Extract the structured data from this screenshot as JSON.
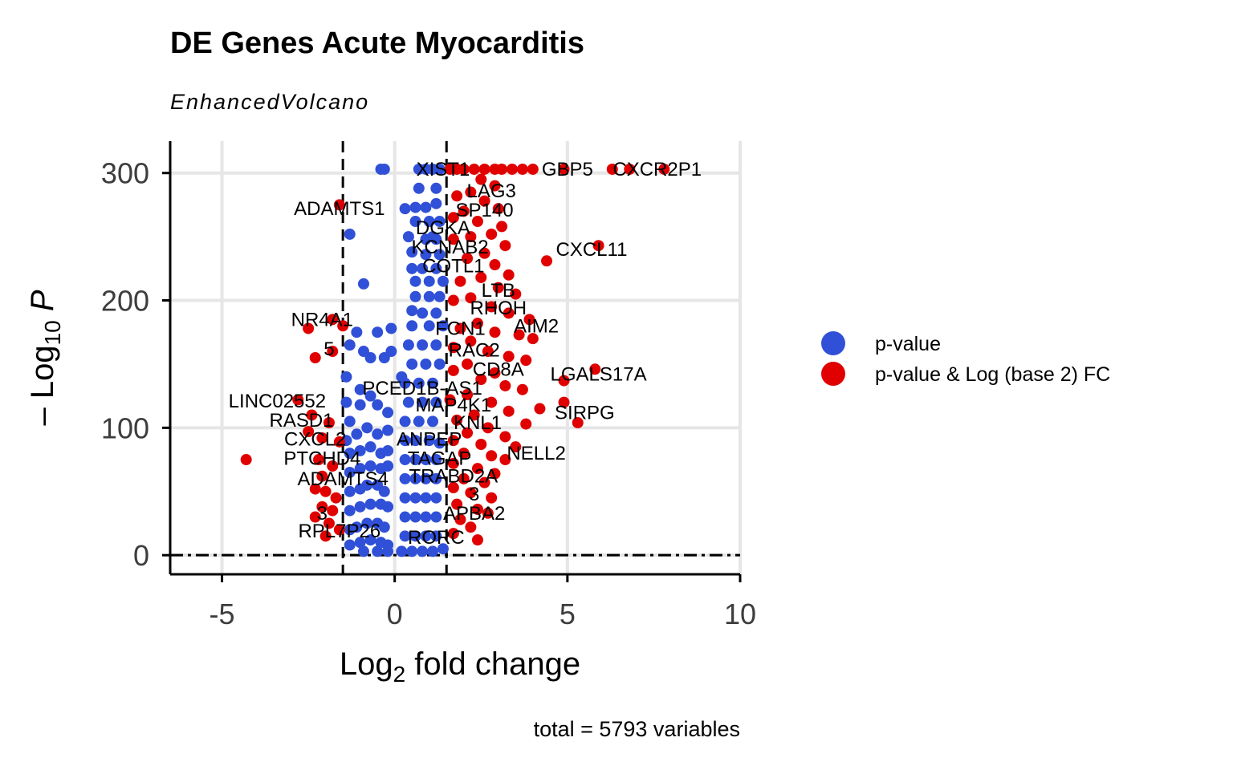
{
  "chart_data": {
    "type": "scatter",
    "title": "DE Genes Acute Myocarditis",
    "subtitle": "EnhancedVolcano",
    "xlabel_main": "Log",
    "xlabel_sub": "2",
    "xlabel_rest": " fold change",
    "ylabel_prefix": "– Log",
    "ylabel_sub": "10",
    "ylabel_var": "P",
    "caption": "total = 5793 variables",
    "xlim": [
      -6.5,
      10
    ],
    "ylim": [
      -15,
      325
    ],
    "x_ticks": [
      -5,
      0,
      5,
      10
    ],
    "x_tick_labels": [
      "-5",
      "0",
      "5",
      "10"
    ],
    "y_ticks": [
      0,
      100,
      200,
      300
    ],
    "y_tick_labels": [
      "0",
      "100",
      "200",
      "300"
    ],
    "fc_cutoff": 1.5,
    "p_cutoff": 0,
    "grid": true,
    "legend_position": "right",
    "colors": {
      "pvalue": "#3050d8",
      "both": "#e00000"
    },
    "legend": [
      {
        "key": "pvalue",
        "label": "p-value"
      },
      {
        "key": "both",
        "label": "p-value & Log (base 2) FC"
      }
    ],
    "series": [
      {
        "key": "pvalue",
        "points": [
          [
            -0.4,
            303
          ],
          [
            -0.3,
            303
          ],
          [
            0.7,
            303
          ],
          [
            0.9,
            303
          ],
          [
            1.1,
            303
          ],
          [
            1.3,
            303
          ],
          [
            0.7,
            288
          ],
          [
            1.2,
            288
          ],
          [
            0.6,
            273
          ],
          [
            0.9,
            273
          ],
          [
            1.2,
            276
          ],
          [
            0.3,
            272
          ],
          [
            0.6,
            262
          ],
          [
            1.0,
            262
          ],
          [
            1.3,
            262
          ],
          [
            0.9,
            248
          ],
          [
            1.2,
            248
          ],
          [
            0.5,
            238
          ],
          [
            0.9,
            236
          ],
          [
            1.3,
            236
          ],
          [
            -1.3,
            252
          ],
          [
            0.5,
            225
          ],
          [
            0.8,
            225
          ],
          [
            1.2,
            225
          ],
          [
            0.6,
            215
          ],
          [
            1.0,
            215
          ],
          [
            1.4,
            215
          ],
          [
            -0.9,
            213
          ],
          [
            0.6,
            203
          ],
          [
            1.0,
            203
          ],
          [
            1.3,
            203
          ],
          [
            0.5,
            192
          ],
          [
            0.8,
            190
          ],
          [
            1.2,
            190
          ],
          [
            -0.5,
            175
          ],
          [
            -0.1,
            178
          ],
          [
            0.5,
            180
          ],
          [
            1.0,
            180
          ],
          [
            1.4,
            180
          ],
          [
            -1.1,
            175
          ],
          [
            -1.3,
            165
          ],
          [
            0.4,
            165
          ],
          [
            0.8,
            165
          ],
          [
            1.2,
            165
          ],
          [
            -0.9,
            160
          ],
          [
            -0.7,
            155
          ],
          [
            -0.3,
            155
          ],
          [
            -0.1,
            160
          ],
          [
            0.5,
            150
          ],
          [
            0.9,
            150
          ],
          [
            1.3,
            150
          ],
          [
            -1.0,
            130
          ],
          [
            -0.7,
            125
          ],
          [
            0.3,
            135
          ],
          [
            0.7,
            135
          ],
          [
            1.1,
            135
          ],
          [
            -1.4,
            120
          ],
          [
            -1.3,
            105
          ],
          [
            -1.0,
            118
          ],
          [
            -0.5,
            118
          ],
          [
            -0.2,
            112
          ],
          [
            0.4,
            120
          ],
          [
            0.8,
            120
          ],
          [
            1.2,
            120
          ],
          [
            -1.4,
            90
          ],
          [
            -1.1,
            95
          ],
          [
            -0.8,
            100
          ],
          [
            -0.5,
            95
          ],
          [
            -0.2,
            98
          ],
          [
            0.3,
            105
          ],
          [
            0.7,
            105
          ],
          [
            1.1,
            105
          ],
          [
            -1.3,
            80
          ],
          [
            -1.0,
            82
          ],
          [
            -0.7,
            85
          ],
          [
            -0.4,
            80
          ],
          [
            -0.2,
            82
          ],
          [
            0.3,
            90
          ],
          [
            0.6,
            90
          ],
          [
            1.0,
            90
          ],
          [
            1.3,
            88
          ],
          [
            -1.3,
            65
          ],
          [
            -1.0,
            68
          ],
          [
            -0.7,
            70
          ],
          [
            -0.4,
            68
          ],
          [
            -0.2,
            70
          ],
          [
            0.3,
            75
          ],
          [
            0.6,
            75
          ],
          [
            0.9,
            75
          ],
          [
            1.2,
            75
          ],
          [
            -1.3,
            50
          ],
          [
            -1.0,
            52
          ],
          [
            -0.8,
            55
          ],
          [
            -0.5,
            55
          ],
          [
            -0.3,
            50
          ],
          [
            0.3,
            60
          ],
          [
            0.6,
            60
          ],
          [
            0.9,
            60
          ],
          [
            1.2,
            60
          ],
          [
            -1.3,
            35
          ],
          [
            -1.0,
            38
          ],
          [
            -0.7,
            40
          ],
          [
            -0.4,
            40
          ],
          [
            -0.2,
            38
          ],
          [
            0.3,
            45
          ],
          [
            0.6,
            45
          ],
          [
            0.9,
            45
          ],
          [
            1.2,
            45
          ],
          [
            -1.3,
            20
          ],
          [
            -1.1,
            22
          ],
          [
            -0.8,
            25
          ],
          [
            -0.5,
            25
          ],
          [
            -0.3,
            22
          ],
          [
            0.3,
            30
          ],
          [
            0.6,
            30
          ],
          [
            0.9,
            30
          ],
          [
            1.2,
            30
          ],
          [
            -1.3,
            8
          ],
          [
            -1.0,
            10
          ],
          [
            -0.7,
            12
          ],
          [
            -0.4,
            10
          ],
          [
            -0.2,
            8
          ],
          [
            0.3,
            15
          ],
          [
            0.6,
            15
          ],
          [
            0.9,
            15
          ],
          [
            1.2,
            15
          ],
          [
            -0.9,
            3
          ],
          [
            -0.5,
            3
          ],
          [
            -0.2,
            3
          ],
          [
            0.2,
            3
          ],
          [
            0.5,
            3
          ],
          [
            0.8,
            3
          ],
          [
            1.1,
            3
          ],
          [
            1.4,
            5
          ],
          [
            -1.4,
            140
          ],
          [
            0.2,
            140
          ],
          [
            0.4,
            250
          ],
          [
            1.1,
            250
          ]
        ]
      },
      {
        "key": "both",
        "points": [
          [
            6.3,
            303
          ],
          [
            6.8,
            303
          ],
          [
            7.8,
            303
          ],
          [
            4.9,
            303
          ],
          [
            4.0,
            303
          ],
          [
            3.7,
            303
          ],
          [
            3.4,
            303
          ],
          [
            3.1,
            303
          ],
          [
            2.9,
            303
          ],
          [
            2.6,
            303
          ],
          [
            2.3,
            303
          ],
          [
            2.0,
            303
          ],
          [
            1.8,
            303
          ],
          [
            1.6,
            303
          ],
          [
            2.5,
            295
          ],
          [
            2.9,
            290
          ],
          [
            2.2,
            285
          ],
          [
            1.8,
            282
          ],
          [
            2.6,
            278
          ],
          [
            3.0,
            272
          ],
          [
            2.0,
            270
          ],
          [
            1.7,
            265
          ],
          [
            2.4,
            262
          ],
          [
            3.1,
            258
          ],
          [
            2.8,
            252
          ],
          [
            2.2,
            250
          ],
          [
            1.7,
            248
          ],
          [
            3.2,
            243
          ],
          [
            5.9,
            243
          ],
          [
            4.4,
            231
          ],
          [
            2.6,
            237
          ],
          [
            2.1,
            233
          ],
          [
            2.9,
            228
          ],
          [
            3.3,
            220
          ],
          [
            2.5,
            218
          ],
          [
            1.9,
            215
          ],
          [
            3.0,
            210
          ],
          [
            3.5,
            205
          ],
          [
            2.2,
            202
          ],
          [
            1.7,
            200
          ],
          [
            2.8,
            195
          ],
          [
            3.3,
            190
          ],
          [
            3.9,
            185
          ],
          [
            2.4,
            182
          ],
          [
            1.9,
            178
          ],
          [
            2.9,
            175
          ],
          [
            3.6,
            173
          ],
          [
            4.0,
            170
          ],
          [
            2.2,
            168
          ],
          [
            1.7,
            163
          ],
          [
            2.7,
            160
          ],
          [
            3.3,
            156
          ],
          [
            3.8,
            153
          ],
          [
            2.1,
            150
          ],
          [
            1.7,
            145
          ],
          [
            2.9,
            143
          ],
          [
            5.8,
            146
          ],
          [
            4.9,
            137
          ],
          [
            2.5,
            138
          ],
          [
            3.2,
            133
          ],
          [
            3.7,
            130
          ],
          [
            2.1,
            126
          ],
          [
            1.6,
            122
          ],
          [
            2.8,
            120
          ],
          [
            4.9,
            120
          ],
          [
            4.2,
            115
          ],
          [
            5.3,
            104
          ],
          [
            3.3,
            113
          ],
          [
            2.3,
            110
          ],
          [
            1.8,
            106
          ],
          [
            3.8,
            103
          ],
          [
            2.7,
            100
          ],
          [
            2.1,
            96
          ],
          [
            3.2,
            93
          ],
          [
            1.7,
            90
          ],
          [
            2.5,
            87
          ],
          [
            3.5,
            85
          ],
          [
            2.0,
            80
          ],
          [
            2.8,
            78
          ],
          [
            3.2,
            75
          ],
          [
            1.7,
            72
          ],
          [
            2.4,
            68
          ],
          [
            2.9,
            64
          ],
          [
            2.0,
            60
          ],
          [
            2.6,
            57
          ],
          [
            1.7,
            53
          ],
          [
            2.2,
            49
          ],
          [
            2.8,
            45
          ],
          [
            1.8,
            40
          ],
          [
            2.4,
            36
          ],
          [
            2.7,
            33
          ],
          [
            1.9,
            28
          ],
          [
            2.2,
            22
          ],
          [
            1.7,
            17
          ],
          [
            2.4,
            12
          ],
          [
            -1.6,
            275
          ],
          [
            -2.5,
            178
          ],
          [
            -1.8,
            185
          ],
          [
            -1.5,
            180
          ],
          [
            -2.3,
            155
          ],
          [
            -1.8,
            160
          ],
          [
            -2.8,
            122
          ],
          [
            -2.4,
            110
          ],
          [
            -1.9,
            104
          ],
          [
            -2.5,
            97
          ],
          [
            -2.1,
            92
          ],
          [
            -1.6,
            89
          ],
          [
            -4.3,
            75
          ],
          [
            -2.2,
            75
          ],
          [
            -1.8,
            70
          ],
          [
            -2.1,
            62
          ],
          [
            -2.3,
            52
          ],
          [
            -2.0,
            50
          ],
          [
            -1.7,
            45
          ],
          [
            -2.1,
            38
          ],
          [
            -1.8,
            35
          ],
          [
            -2.3,
            30
          ],
          [
            -1.9,
            25
          ],
          [
            -1.6,
            20
          ],
          [
            -2.0,
            15
          ]
        ]
      }
    ],
    "labels": [
      {
        "text": "XIST1",
        "x": 1.4,
        "y": 303
      },
      {
        "text": "GBP5",
        "x": 5.0,
        "y": 303
      },
      {
        "text": "CXCR2P1",
        "x": 7.6,
        "y": 303
      },
      {
        "text": "LAG3",
        "x": 2.8,
        "y": 286
      },
      {
        "text": "ADAMTS1",
        "x": -1.6,
        "y": 272
      },
      {
        "text": "SP140",
        "x": 2.6,
        "y": 271
      },
      {
        "text": "DGKA",
        "x": 1.4,
        "y": 257
      },
      {
        "text": "KCNAB2",
        "x": 1.6,
        "y": 242
      },
      {
        "text": "CXCL11",
        "x": 5.7,
        "y": 240
      },
      {
        "text": "COTL1",
        "x": 1.7,
        "y": 227
      },
      {
        "text": "LTB",
        "x": 3.0,
        "y": 208
      },
      {
        "text": "RHOH",
        "x": 3.0,
        "y": 194
      },
      {
        "text": "NR4A1",
        "x": -2.1,
        "y": 185
      },
      {
        "text": "FCN1",
        "x": 1.9,
        "y": 178
      },
      {
        "text": "AIM2",
        "x": 4.1,
        "y": 180
      },
      {
        "text": "5",
        "x": -1.9,
        "y": 162
      },
      {
        "text": "RAC2",
        "x": 2.3,
        "y": 161
      },
      {
        "text": "CD8A",
        "x": 3.0,
        "y": 146
      },
      {
        "text": "LGALS17A",
        "x": 5.9,
        "y": 142
      },
      {
        "text": "PCED1B-AS1",
        "x": 0.8,
        "y": 131
      },
      {
        "text": "LINC02552",
        "x": -3.4,
        "y": 121
      },
      {
        "text": "MAP4K1",
        "x": 1.7,
        "y": 118
      },
      {
        "text": "SIRPG",
        "x": 5.5,
        "y": 112
      },
      {
        "text": "RASD1",
        "x": -2.7,
        "y": 106
      },
      {
        "text": "KNL1",
        "x": 2.4,
        "y": 104
      },
      {
        "text": "CXCL2",
        "x": -2.3,
        "y": 91
      },
      {
        "text": "ANPEP",
        "x": 1.0,
        "y": 91
      },
      {
        "text": "NELL2",
        "x": 4.1,
        "y": 80
      },
      {
        "text": "PTCHD4",
        "x": -2.1,
        "y": 76
      },
      {
        "text": "TAGAP",
        "x": 1.3,
        "y": 76
      },
      {
        "text": "ADAMTS4",
        "x": -1.5,
        "y": 60
      },
      {
        "text": "TRABD2A",
        "x": 1.7,
        "y": 62
      },
      {
        "text": "3",
        "x": 2.3,
        "y": 48
      },
      {
        "text": "APBA2",
        "x": 2.3,
        "y": 33
      },
      {
        "text": "3",
        "x": -2.1,
        "y": 33
      },
      {
        "text": "RPL7P26",
        "x": -1.6,
        "y": 19
      },
      {
        "text": "RORC",
        "x": 1.2,
        "y": 14
      }
    ]
  }
}
